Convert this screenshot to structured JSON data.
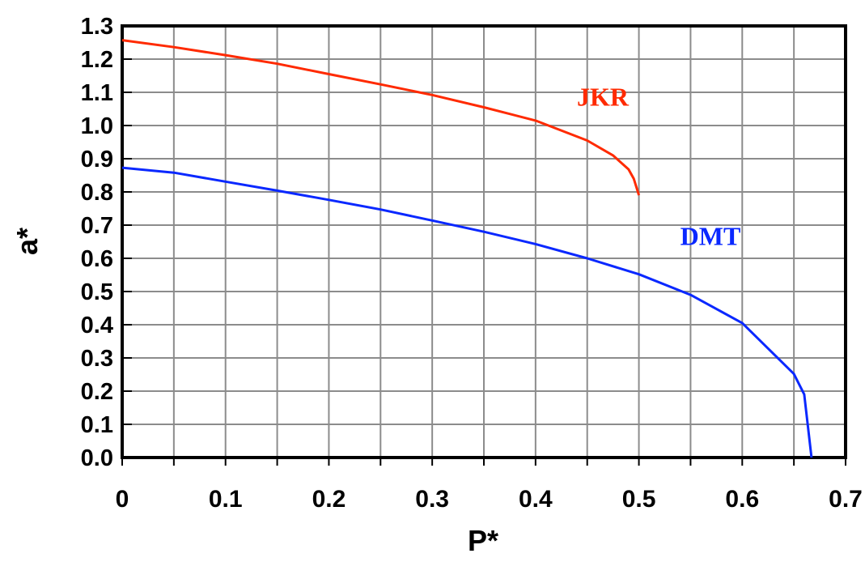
{
  "chart_data": {
    "type": "line",
    "title": "",
    "xlabel": "P*",
    "ylabel": "a*",
    "xlim": [
      0,
      0.7
    ],
    "ylim": [
      0,
      1.3
    ],
    "grid": true,
    "legend": "inline labels",
    "x_ticks": [
      "0",
      "0.1",
      "0.2",
      "0.3",
      "0.4",
      "0.5",
      "0.6",
      "0.7"
    ],
    "y_ticks": [
      "0.0",
      "0.1",
      "0.2",
      "0.3",
      "0.4",
      "0.5",
      "0.6",
      "0.7",
      "0.8",
      "0.9",
      "1.0",
      "1.1",
      "1.2",
      "1.3"
    ],
    "series": [
      {
        "name": "JKR",
        "color": "#ff2a00",
        "label_at": [
          0.44,
          1.06
        ],
        "points": [
          [
            0,
            1.257
          ],
          [
            0.05,
            1.236
          ],
          [
            0.1,
            1.212
          ],
          [
            0.15,
            1.186
          ],
          [
            0.2,
            1.155
          ],
          [
            0.25,
            1.124
          ],
          [
            0.3,
            1.092
          ],
          [
            0.35,
            1.055
          ],
          [
            0.4,
            1.015
          ],
          [
            0.45,
            0.955
          ],
          [
            0.475,
            0.91
          ],
          [
            0.49,
            0.868
          ],
          [
            0.495,
            0.84
          ],
          [
            0.5,
            0.79
          ]
        ]
      },
      {
        "name": "DMT",
        "color": "#0a28ff",
        "label_at": [
          0.54,
          0.64
        ],
        "points": [
          [
            0,
            0.873
          ],
          [
            0.05,
            0.858
          ],
          [
            0.1,
            0.831
          ],
          [
            0.15,
            0.804
          ],
          [
            0.2,
            0.776
          ],
          [
            0.25,
            0.747
          ],
          [
            0.3,
            0.714
          ],
          [
            0.35,
            0.68
          ],
          [
            0.4,
            0.643
          ],
          [
            0.45,
            0.6
          ],
          [
            0.5,
            0.552
          ],
          [
            0.55,
            0.49
          ],
          [
            0.6,
            0.405
          ],
          [
            0.65,
            0.252
          ],
          [
            0.66,
            0.19
          ],
          [
            0.667,
            0.0
          ]
        ]
      }
    ]
  }
}
